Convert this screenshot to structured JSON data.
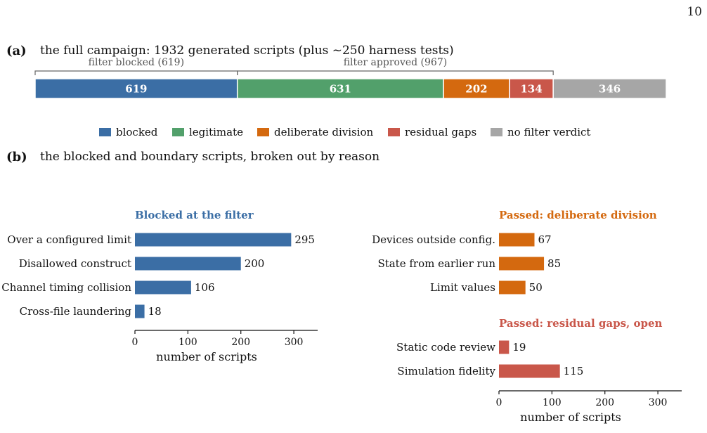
{
  "page_number": "10",
  "panel_a": {
    "tag": "(a)",
    "caption": "the full campaign: 1932 generated scripts (plus ~250 harness tests)",
    "brackets": [
      {
        "label": "filter blocked  (619)",
        "from": 0,
        "to": 619
      },
      {
        "label": "filter approved  (967)",
        "from": 619,
        "to": 1586
      }
    ]
  },
  "panel_b": {
    "tag": "(b)",
    "caption": "the blocked and boundary scripts, broken out by reason"
  },
  "colors": {
    "blocked": "#3b6ea5",
    "legitimate": "#52a06b",
    "deliberate": "#d4690f",
    "residual": "#c9574a",
    "no_verdict": "#a6a6a6"
  },
  "chart_data": [
    {
      "type": "bar",
      "orientation": "horizontal-stacked",
      "total": 1932,
      "segments": [
        {
          "name": "blocked",
          "value": 619,
          "label": "619",
          "color": "#3b6ea5"
        },
        {
          "name": "legitimate",
          "value": 631,
          "label": "631",
          "color": "#52a06b"
        },
        {
          "name": "deliberate division",
          "value": 202,
          "label": "202",
          "color": "#d4690f"
        },
        {
          "name": "residual gaps",
          "value": 134,
          "label": "134",
          "color": "#c9574a"
        },
        {
          "name": "no filter verdict",
          "value": 346,
          "label": "346",
          "color": "#a6a6a6"
        }
      ],
      "legend": [
        {
          "label": "blocked",
          "color": "#3b6ea5"
        },
        {
          "label": "legitimate",
          "color": "#52a06b"
        },
        {
          "label": "deliberate division",
          "color": "#d4690f"
        },
        {
          "label": "residual gaps",
          "color": "#c9574a"
        },
        {
          "label": "no filter verdict",
          "color": "#a6a6a6"
        }
      ],
      "legend_position": "bottom-center"
    },
    {
      "type": "bar",
      "orientation": "horizontal",
      "title": "Blocked at the filter",
      "title_color": "#3b6ea5",
      "categories": [
        "Over a configured limit",
        "Disallowed construct",
        "Channel timing collision",
        "Cross-file laundering"
      ],
      "values": [
        295,
        200,
        106,
        18
      ],
      "color": "#3b6ea5",
      "xlabel": "number of scripts",
      "xlim": [
        0,
        345
      ],
      "xticks": [
        0,
        100,
        200,
        300
      ]
    },
    {
      "type": "bar",
      "orientation": "horizontal",
      "title": "Passed: deliberate division",
      "title_color": "#d4690f",
      "categories": [
        "Devices outside config.",
        "State from earlier run",
        "Limit values"
      ],
      "values": [
        67,
        85,
        50
      ],
      "color": "#d4690f",
      "xlim": [
        0,
        345
      ]
    },
    {
      "type": "bar",
      "orientation": "horizontal",
      "title": "Passed: residual gaps, open",
      "title_color": "#c9574a",
      "categories": [
        "Static code review",
        "Simulation fidelity"
      ],
      "values": [
        19,
        115
      ],
      "color": "#c9574a",
      "xlabel": "number of scripts",
      "xlim": [
        0,
        345
      ],
      "xticks": [
        0,
        100,
        200,
        300
      ]
    }
  ]
}
